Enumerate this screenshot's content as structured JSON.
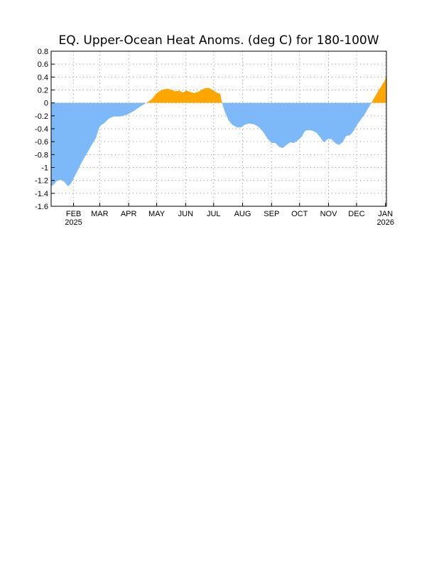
{
  "chart_data": {
    "type": "area",
    "title": "EQ. Upper-Ocean Heat Anoms. (deg C) for 180-100W",
    "xlabel": "",
    "ylabel": "",
    "ylim": [
      -1.6,
      0.8
    ],
    "yticks": [
      {
        "value": 0.8,
        "label": "0.8"
      },
      {
        "value": 0.6,
        "label": "0.6"
      },
      {
        "value": 0.4,
        "label": "0.4"
      },
      {
        "value": 0.2,
        "label": "0.2"
      },
      {
        "value": 0.0,
        "label": "0"
      },
      {
        "value": -0.2,
        "label": "-0.2"
      },
      {
        "value": -0.4,
        "label": "-0.4"
      },
      {
        "value": -0.6,
        "label": "-0.6"
      },
      {
        "value": -0.8,
        "label": "-0.8"
      },
      {
        "value": -1.0,
        "label": "-1"
      },
      {
        "value": -1.2,
        "label": "-1.2"
      },
      {
        "value": -1.4,
        "label": "-1.4"
      },
      {
        "value": -1.6,
        "label": "-1.6"
      }
    ],
    "xlim": [
      "2025-01-08",
      "2026-01-02"
    ],
    "xticks": [
      {
        "date": "2025-02-01",
        "label": "FEB",
        "sublabel": "2025"
      },
      {
        "date": "2025-03-01",
        "label": "MAR",
        "sublabel": ""
      },
      {
        "date": "2025-04-01",
        "label": "APR",
        "sublabel": ""
      },
      {
        "date": "2025-05-01",
        "label": "MAY",
        "sublabel": ""
      },
      {
        "date": "2025-06-01",
        "label": "JUN",
        "sublabel": ""
      },
      {
        "date": "2025-07-01",
        "label": "JUL",
        "sublabel": ""
      },
      {
        "date": "2025-08-01",
        "label": "AUG",
        "sublabel": ""
      },
      {
        "date": "2025-09-01",
        "label": "SEP",
        "sublabel": ""
      },
      {
        "date": "2025-10-01",
        "label": "OCT",
        "sublabel": ""
      },
      {
        "date": "2025-11-01",
        "label": "NOV",
        "sublabel": ""
      },
      {
        "date": "2025-12-01",
        "label": "DEC",
        "sublabel": ""
      },
      {
        "date": "2026-01-01",
        "label": "JAN",
        "sublabel": "2026"
      }
    ],
    "grid": true,
    "positive_color": "#ffa500",
    "negative_color": "#7db9f8",
    "series": [
      {
        "points": [
          {
            "x": "2025-01-08",
            "y": -1.29
          },
          {
            "x": "2025-01-11",
            "y": -1.26
          },
          {
            "x": "2025-01-14",
            "y": -1.21
          },
          {
            "x": "2025-01-18",
            "y": -1.19
          },
          {
            "x": "2025-01-22",
            "y": -1.22
          },
          {
            "x": "2025-01-26",
            "y": -1.29
          },
          {
            "x": "2025-01-29",
            "y": -1.25
          },
          {
            "x": "2025-02-02",
            "y": -1.14
          },
          {
            "x": "2025-02-06",
            "y": -1.03
          },
          {
            "x": "2025-02-10",
            "y": -0.91
          },
          {
            "x": "2025-02-15",
            "y": -0.79
          },
          {
            "x": "2025-02-20",
            "y": -0.66
          },
          {
            "x": "2025-02-25",
            "y": -0.54
          },
          {
            "x": "2025-03-01",
            "y": -0.36
          },
          {
            "x": "2025-03-06",
            "y": -0.31
          },
          {
            "x": "2025-03-11",
            "y": -0.24
          },
          {
            "x": "2025-03-16",
            "y": -0.21
          },
          {
            "x": "2025-03-23",
            "y": -0.21
          },
          {
            "x": "2025-03-31",
            "y": -0.18
          },
          {
            "x": "2025-04-07",
            "y": -0.12
          },
          {
            "x": "2025-04-14",
            "y": -0.05
          },
          {
            "x": "2025-04-20",
            "y": 0.0
          },
          {
            "x": "2025-04-26",
            "y": 0.06
          },
          {
            "x": "2025-05-01",
            "y": 0.15
          },
          {
            "x": "2025-05-05",
            "y": 0.19
          },
          {
            "x": "2025-05-09",
            "y": 0.21
          },
          {
            "x": "2025-05-13",
            "y": 0.22
          },
          {
            "x": "2025-05-17",
            "y": 0.2
          },
          {
            "x": "2025-05-21",
            "y": 0.18
          },
          {
            "x": "2025-05-25",
            "y": 0.19
          },
          {
            "x": "2025-05-29",
            "y": 0.16
          },
          {
            "x": "2025-06-02",
            "y": 0.19
          },
          {
            "x": "2025-06-06",
            "y": 0.17
          },
          {
            "x": "2025-06-10",
            "y": 0.15
          },
          {
            "x": "2025-06-14",
            "y": 0.17
          },
          {
            "x": "2025-06-18",
            "y": 0.2
          },
          {
            "x": "2025-06-22",
            "y": 0.23
          },
          {
            "x": "2025-06-26",
            "y": 0.23
          },
          {
            "x": "2025-07-01",
            "y": 0.19
          },
          {
            "x": "2025-07-04",
            "y": 0.16
          },
          {
            "x": "2025-07-08",
            "y": 0.14
          },
          {
            "x": "2025-07-10",
            "y": 0.0
          },
          {
            "x": "2025-07-13",
            "y": -0.14
          },
          {
            "x": "2025-07-17",
            "y": -0.27
          },
          {
            "x": "2025-07-21",
            "y": -0.34
          },
          {
            "x": "2025-07-26",
            "y": -0.38
          },
          {
            "x": "2025-07-30",
            "y": -0.38
          },
          {
            "x": "2025-08-03",
            "y": -0.34
          },
          {
            "x": "2025-08-08",
            "y": -0.32
          },
          {
            "x": "2025-08-13",
            "y": -0.33
          },
          {
            "x": "2025-08-18",
            "y": -0.37
          },
          {
            "x": "2025-08-23",
            "y": -0.45
          },
          {
            "x": "2025-08-28",
            "y": -0.56
          },
          {
            "x": "2025-09-01",
            "y": -0.62
          },
          {
            "x": "2025-09-05",
            "y": -0.62
          },
          {
            "x": "2025-09-09",
            "y": -0.68
          },
          {
            "x": "2025-09-13",
            "y": -0.7
          },
          {
            "x": "2025-09-17",
            "y": -0.65
          },
          {
            "x": "2025-09-21",
            "y": -0.61
          },
          {
            "x": "2025-09-25",
            "y": -0.62
          },
          {
            "x": "2025-09-29",
            "y": -0.58
          },
          {
            "x": "2025-10-03",
            "y": -0.53
          },
          {
            "x": "2025-10-07",
            "y": -0.43
          },
          {
            "x": "2025-10-11",
            "y": -0.42
          },
          {
            "x": "2025-10-15",
            "y": -0.43
          },
          {
            "x": "2025-10-19",
            "y": -0.46
          },
          {
            "x": "2025-10-23",
            "y": -0.53
          },
          {
            "x": "2025-10-27",
            "y": -0.61
          },
          {
            "x": "2025-10-31",
            "y": -0.56
          },
          {
            "x": "2025-11-04",
            "y": -0.56
          },
          {
            "x": "2025-11-08",
            "y": -0.62
          },
          {
            "x": "2025-11-12",
            "y": -0.65
          },
          {
            "x": "2025-11-16",
            "y": -0.61
          },
          {
            "x": "2025-11-20",
            "y": -0.51
          },
          {
            "x": "2025-11-24",
            "y": -0.5
          },
          {
            "x": "2025-11-28",
            "y": -0.43
          },
          {
            "x": "2025-12-02",
            "y": -0.33
          },
          {
            "x": "2025-12-06",
            "y": -0.25
          },
          {
            "x": "2025-12-10",
            "y": -0.17
          },
          {
            "x": "2025-12-14",
            "y": -0.07
          },
          {
            "x": "2025-12-17",
            "y": 0.0
          },
          {
            "x": "2025-12-20",
            "y": 0.08
          },
          {
            "x": "2025-12-24",
            "y": 0.18
          },
          {
            "x": "2025-12-28",
            "y": 0.27
          },
          {
            "x": "2025-12-31",
            "y": 0.34
          },
          {
            "x": "2026-01-02",
            "y": 0.42
          }
        ]
      }
    ]
  }
}
